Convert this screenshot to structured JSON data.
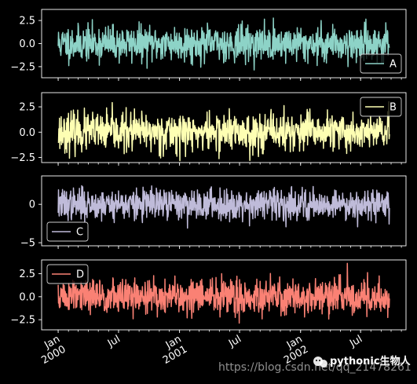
{
  "chart_data": {
    "type": "line",
    "x_range": [
      "2000-01-01",
      "2002-09-26"
    ],
    "x_date_ticks": [
      {
        "date": "2000-01-01",
        "label": "Jan",
        "sublabel": "2000"
      },
      {
        "date": "2000-07-01",
        "label": "Jul",
        "sublabel": ""
      },
      {
        "date": "2001-01-01",
        "label": "Jan",
        "sublabel": "2001"
      },
      {
        "date": "2001-07-01",
        "label": "Jul",
        "sublabel": ""
      },
      {
        "date": "2002-01-01",
        "label": "Jan",
        "sublabel": "2002"
      },
      {
        "date": "2002-07-01",
        "label": "Jul",
        "sublabel": ""
      }
    ],
    "n_points": 1000,
    "style": "dark_background",
    "grid": false,
    "subplots": [
      {
        "series": "A",
        "color": "#8dd3c7",
        "yticks": [
          2.5,
          0.0,
          -2.5
        ],
        "ytick_labels": [
          "2.5",
          "0.0",
          "−2.5"
        ],
        "ylim": [
          -3.7,
          3.7
        ],
        "legend_loc": "lower right",
        "spread": 0.95,
        "seed": 11
      },
      {
        "series": "B",
        "color": "#feffb3",
        "yticks": [
          2.5,
          0.0,
          -2.5
        ],
        "ytick_labels": [
          "2.5",
          "0.0",
          "−2.5"
        ],
        "ylim": [
          -3.0,
          3.9
        ],
        "legend_loc": "upper right",
        "spread": 0.95,
        "seed": 23
      },
      {
        "series": "C",
        "color": "#bfbbd9",
        "yticks": [
          0,
          -5
        ],
        "ytick_labels": [
          "0",
          "−5"
        ],
        "ylim": [
          -5.4,
          3.7
        ],
        "legend_loc": "lower left",
        "spread": 1.0,
        "seed": 37
      },
      {
        "series": "D",
        "color": "#fa8174",
        "yticks": [
          2.5,
          0.0,
          -2.5
        ],
        "ytick_labels": [
          "2.5",
          "0.0",
          "−2.5"
        ],
        "ylim": [
          -3.6,
          4.0
        ],
        "legend_loc": "upper left",
        "spread": 0.95,
        "seed": 51
      }
    ]
  },
  "watermark": {
    "url": "https://blog.csdn.net/qq_21478261",
    "brand": "pythonic生物人",
    "icon": "wechat-icon"
  }
}
